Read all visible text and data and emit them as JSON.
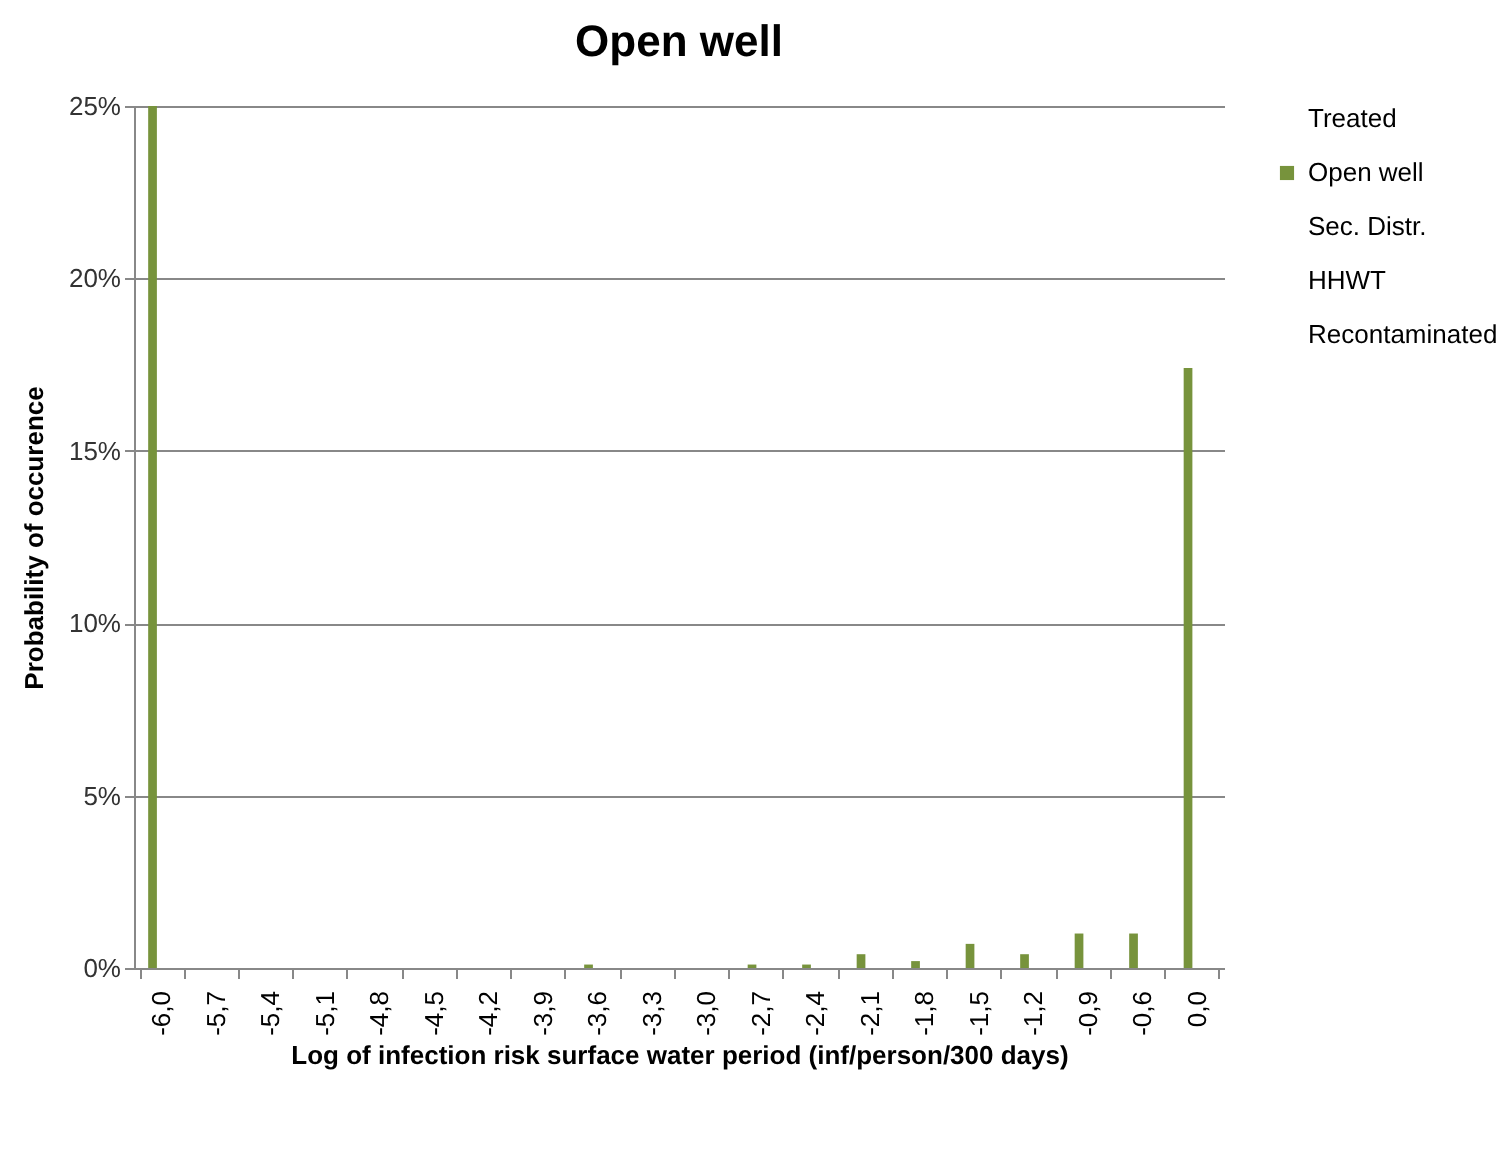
{
  "chart_data": {
    "type": "bar",
    "title": "Open well",
    "xlabel": "Log of infection risk surface water period (inf/person/300 days)",
    "ylabel": "Probability of occurence",
    "categories": [
      "-6,0",
      "-5,7",
      "-5,4",
      "-5,1",
      "-4,8",
      "-4,5",
      "-4,2",
      "-3,9",
      "-3,6",
      "-3,3",
      "-3,0",
      "-2,7",
      "-2,4",
      "-2,1",
      "-1,8",
      "-1,5",
      "-1,2",
      "-0,9",
      "-0,6",
      "0,0"
    ],
    "series": [
      {
        "name": "Treated",
        "values": [
          null,
          null,
          null,
          null,
          null,
          null,
          null,
          null,
          null,
          null,
          null,
          null,
          null,
          null,
          null,
          null,
          null,
          null,
          null,
          null
        ]
      },
      {
        "name": "Open well",
        "color": "#77933c",
        "values": [
          25,
          0,
          0,
          0,
          0,
          0,
          0,
          0,
          0.1,
          0,
          0,
          0.1,
          0.1,
          0.4,
          0.2,
          0.7,
          0.4,
          1.0,
          1.0,
          17.4
        ]
      },
      {
        "name": "Sec. Distr.",
        "values": [
          null,
          null,
          null,
          null,
          null,
          null,
          null,
          null,
          null,
          null,
          null,
          null,
          null,
          null,
          null,
          null,
          null,
          null,
          null,
          null
        ]
      },
      {
        "name": "HHWT",
        "values": [
          null,
          null,
          null,
          null,
          null,
          null,
          null,
          null,
          null,
          null,
          null,
          null,
          null,
          null,
          null,
          null,
          null,
          null,
          null,
          null
        ]
      },
      {
        "name": "Recontaminated",
        "values": [
          null,
          null,
          null,
          null,
          null,
          null,
          null,
          null,
          null,
          null,
          null,
          null,
          null,
          null,
          null,
          null,
          null,
          null,
          null,
          null
        ]
      }
    ],
    "ylim": [
      0,
      25
    ],
    "yticks": [
      {
        "value": 0,
        "label": "0%"
      },
      {
        "value": 5,
        "label": "5%"
      },
      {
        "value": 10,
        "label": "10%"
      },
      {
        "value": 15,
        "label": "15%"
      },
      {
        "value": 20,
        "label": "20%"
      },
      {
        "value": 25,
        "label": "25%"
      }
    ],
    "grid": "y",
    "legend": "right"
  }
}
